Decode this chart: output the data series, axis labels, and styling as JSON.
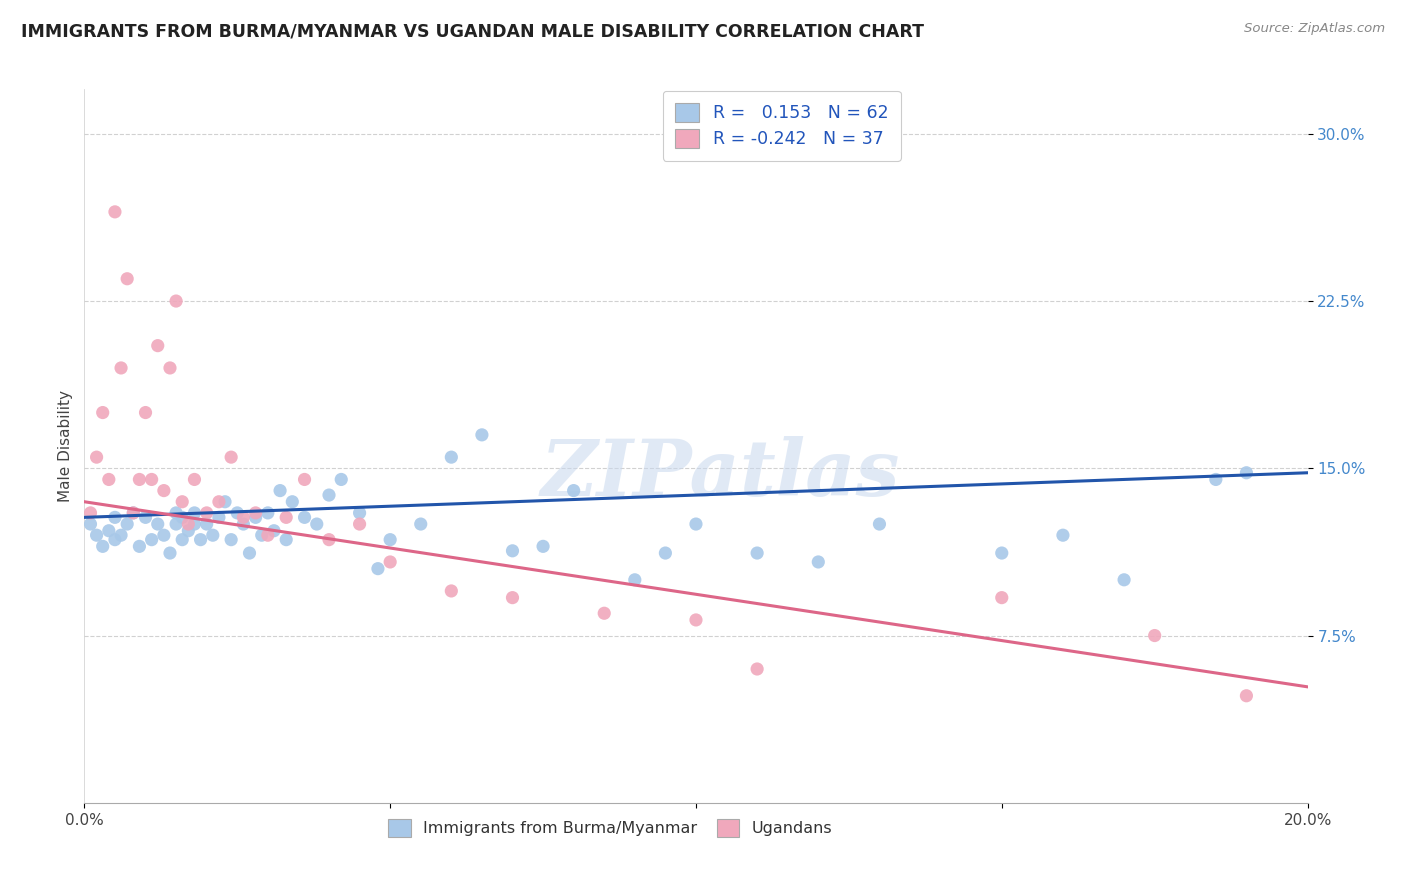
{
  "title": "IMMIGRANTS FROM BURMA/MYANMAR VS UGANDAN MALE DISABILITY CORRELATION CHART",
  "source": "Source: ZipAtlas.com",
  "ylabel": "Male Disability",
  "xlim": [
    0.0,
    0.2
  ],
  "ylim": [
    0.0,
    0.32
  ],
  "yticks": [
    0.075,
    0.15,
    0.225,
    0.3
  ],
  "ytick_labels": [
    "7.5%",
    "15.0%",
    "22.5%",
    "30.0%"
  ],
  "xticks": [
    0.0,
    0.05,
    0.1,
    0.15,
    0.2
  ],
  "xtick_labels": [
    "0.0%",
    "",
    "",
    "",
    "20.0%"
  ],
  "blue_color": "#a8c8e8",
  "pink_color": "#f0a8bc",
  "blue_line_color": "#2255aa",
  "pink_line_color": "#dd6688",
  "legend_label1": "Immigrants from Burma/Myanmar",
  "legend_label2": "Ugandans",
  "watermark": "ZIPatlas",
  "blue_line_x0": 0.0,
  "blue_line_y0": 0.128,
  "blue_line_x1": 0.2,
  "blue_line_y1": 0.148,
  "pink_line_x0": 0.0,
  "pink_line_y0": 0.135,
  "pink_line_x1": 0.2,
  "pink_line_y1": 0.052,
  "blue_scatter_x": [
    0.001,
    0.002,
    0.003,
    0.004,
    0.005,
    0.005,
    0.006,
    0.007,
    0.008,
    0.009,
    0.01,
    0.011,
    0.012,
    0.013,
    0.014,
    0.015,
    0.015,
    0.016,
    0.016,
    0.017,
    0.018,
    0.018,
    0.019,
    0.02,
    0.021,
    0.022,
    0.023,
    0.024,
    0.025,
    0.026,
    0.027,
    0.028,
    0.029,
    0.03,
    0.031,
    0.032,
    0.033,
    0.034,
    0.036,
    0.038,
    0.04,
    0.042,
    0.045,
    0.048,
    0.05,
    0.055,
    0.06,
    0.065,
    0.07,
    0.075,
    0.08,
    0.09,
    0.095,
    0.1,
    0.11,
    0.12,
    0.13,
    0.15,
    0.16,
    0.17,
    0.185,
    0.19
  ],
  "blue_scatter_y": [
    0.125,
    0.12,
    0.115,
    0.122,
    0.118,
    0.128,
    0.12,
    0.125,
    0.13,
    0.115,
    0.128,
    0.118,
    0.125,
    0.12,
    0.112,
    0.125,
    0.13,
    0.118,
    0.128,
    0.122,
    0.125,
    0.13,
    0.118,
    0.125,
    0.12,
    0.128,
    0.135,
    0.118,
    0.13,
    0.125,
    0.112,
    0.128,
    0.12,
    0.13,
    0.122,
    0.14,
    0.118,
    0.135,
    0.128,
    0.125,
    0.138,
    0.145,
    0.13,
    0.105,
    0.118,
    0.125,
    0.155,
    0.165,
    0.113,
    0.115,
    0.14,
    0.1,
    0.112,
    0.125,
    0.112,
    0.108,
    0.125,
    0.112,
    0.12,
    0.1,
    0.145,
    0.148
  ],
  "pink_scatter_x": [
    0.001,
    0.002,
    0.003,
    0.004,
    0.005,
    0.006,
    0.007,
    0.008,
    0.009,
    0.01,
    0.011,
    0.012,
    0.013,
    0.014,
    0.015,
    0.016,
    0.017,
    0.018,
    0.02,
    0.022,
    0.024,
    0.026,
    0.028,
    0.03,
    0.033,
    0.036,
    0.04,
    0.045,
    0.05,
    0.06,
    0.07,
    0.085,
    0.1,
    0.11,
    0.15,
    0.175,
    0.19
  ],
  "pink_scatter_y": [
    0.13,
    0.155,
    0.175,
    0.145,
    0.265,
    0.195,
    0.235,
    0.13,
    0.145,
    0.175,
    0.145,
    0.205,
    0.14,
    0.195,
    0.225,
    0.135,
    0.125,
    0.145,
    0.13,
    0.135,
    0.155,
    0.128,
    0.13,
    0.12,
    0.128,
    0.145,
    0.118,
    0.125,
    0.108,
    0.095,
    0.092,
    0.085,
    0.082,
    0.06,
    0.092,
    0.075,
    0.048
  ]
}
